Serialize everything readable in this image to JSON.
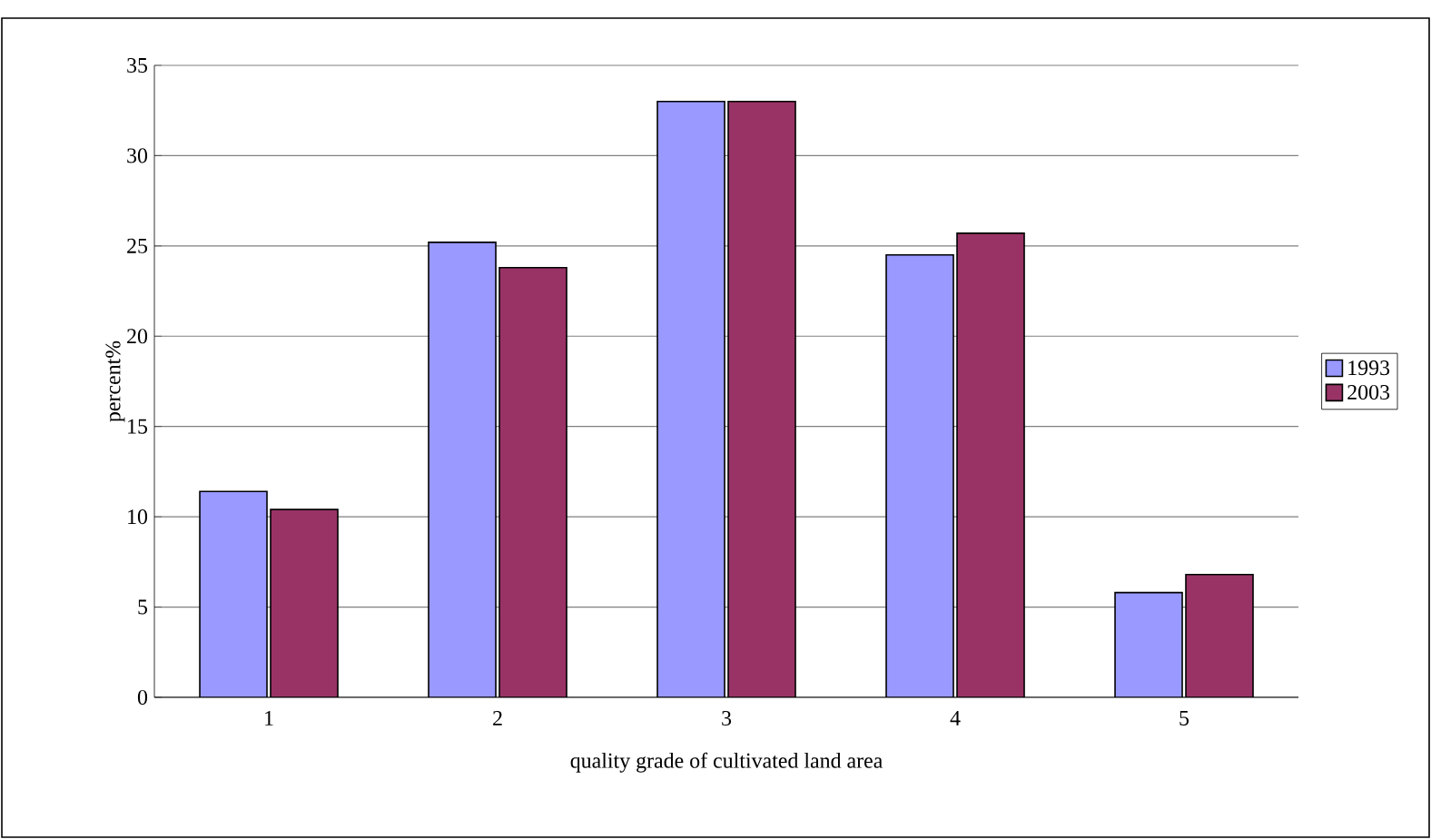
{
  "chart_data": {
    "type": "bar",
    "xlabel": "quality grade of cultivated land area",
    "ylabel": "percent%",
    "categories": [
      "1",
      "2",
      "3",
      "4",
      "5"
    ],
    "series": [
      {
        "name": "1993",
        "color": "#9999ff",
        "values": [
          11.4,
          25.2,
          33.0,
          24.5,
          5.8
        ]
      },
      {
        "name": "2003",
        "color": "#993366",
        "values": [
          10.4,
          23.8,
          33.0,
          25.7,
          6.8
        ]
      }
    ],
    "ylim": [
      0,
      35
    ],
    "yticks": [
      0,
      5,
      10,
      15,
      20,
      25,
      30,
      35
    ],
    "grid": "y",
    "legend": "right"
  }
}
